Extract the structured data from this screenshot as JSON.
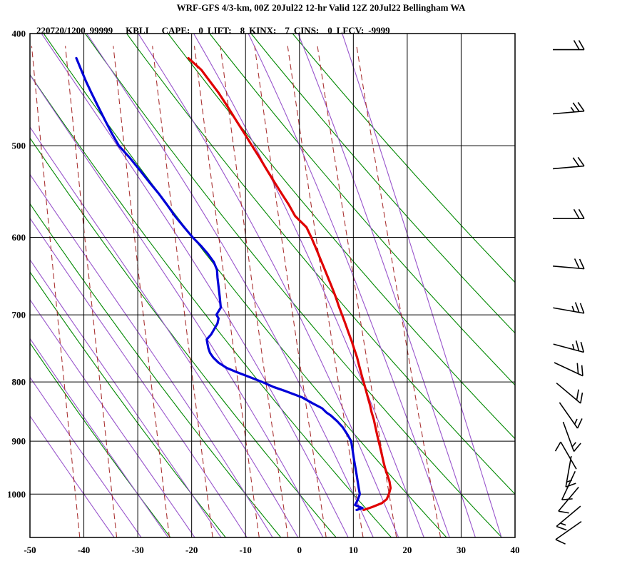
{
  "header": {
    "line1": "WRF-GFS 4/3-km, 00Z 20Jul22 12-hr Valid 12Z 20Jul22 Bellingham WA",
    "line2": {
      "timestamp": "220720/1200",
      "wmo_id": "99999",
      "station_id": "KBLI",
      "cape_label": "CAPE:",
      "cape_value": "0",
      "lift_label": "LIFT:",
      "lift_value": "8",
      "kinx_label": "KINX:",
      "kinx_value": "7",
      "cins_label": "CINS:",
      "cins_value": "0",
      "lfcv_label": "LFCV:",
      "lfcv_value": "-9999"
    }
  },
  "chart_data": {
    "type": "line",
    "subtype": "stuve-sounding",
    "title": "WRF-GFS 4/3-km, 00Z 20Jul22 12-hr Valid 12Z 20Jul22 Bellingham WA",
    "station": "KBLI Bellingham WA",
    "x_axis": {
      "unit": "degC",
      "range": [
        -50,
        40
      ],
      "ticks": [
        -50,
        -40,
        -30,
        -20,
        -10,
        0,
        10,
        20,
        30,
        40
      ]
    },
    "y_axis": {
      "unit": "hPa",
      "scale": "log",
      "top": 400,
      "bottom": 1090,
      "ticks": [
        400,
        500,
        600,
        700,
        800,
        900,
        1000
      ]
    },
    "series": [
      {
        "name": "temperature",
        "color": "#e00000",
        "points": [
          [
            1032,
            11.9
          ],
          [
            1026,
            13.5
          ],
          [
            1018,
            15.3
          ],
          [
            1010,
            16.2
          ],
          [
            1000,
            16.6
          ],
          [
            988,
            16.9
          ],
          [
            975,
            16.7
          ],
          [
            962,
            16.3
          ],
          [
            950,
            15.9
          ],
          [
            938,
            15.6
          ],
          [
            925,
            15.3
          ],
          [
            912,
            15.0
          ],
          [
            900,
            14.7
          ],
          [
            888,
            14.4
          ],
          [
            875,
            14.1
          ],
          [
            862,
            13.8
          ],
          [
            850,
            13.4
          ],
          [
            838,
            13.1
          ],
          [
            825,
            12.7
          ],
          [
            812,
            12.3
          ],
          [
            800,
            11.9
          ],
          [
            788,
            11.5
          ],
          [
            775,
            11.1
          ],
          [
            762,
            10.7
          ],
          [
            750,
            10.2
          ],
          [
            738,
            9.7
          ],
          [
            725,
            9.1
          ],
          [
            712,
            8.5
          ],
          [
            700,
            7.9
          ],
          [
            688,
            7.3
          ],
          [
            675,
            6.7
          ],
          [
            662,
            6.0
          ],
          [
            650,
            5.3
          ],
          [
            638,
            4.6
          ],
          [
            625,
            3.8
          ],
          [
            612,
            3.0
          ],
          [
            600,
            2.2
          ],
          [
            588,
            1.3
          ],
          [
            575,
            -0.8
          ],
          [
            562,
            -2.0
          ],
          [
            550,
            -3.3
          ],
          [
            538,
            -4.6
          ],
          [
            525,
            -6.0
          ],
          [
            512,
            -7.4
          ],
          [
            500,
            -8.8
          ],
          [
            488,
            -10.2
          ],
          [
            475,
            -11.8
          ],
          [
            462,
            -13.4
          ],
          [
            450,
            -15.0
          ],
          [
            440,
            -16.6
          ],
          [
            430,
            -18.2
          ],
          [
            420,
            -20.6
          ]
        ]
      },
      {
        "name": "dewpoint",
        "color": "#0000d8",
        "points": [
          [
            1032,
            10.6
          ],
          [
            1028,
            11.7
          ],
          [
            1022,
            10.3
          ],
          [
            1012,
            10.8
          ],
          [
            1000,
            11.2
          ],
          [
            988,
            11.0
          ],
          [
            975,
            10.8
          ],
          [
            962,
            10.6
          ],
          [
            950,
            10.4
          ],
          [
            938,
            10.2
          ],
          [
            925,
            10.0
          ],
          [
            912,
            9.8
          ],
          [
            900,
            9.6
          ],
          [
            888,
            8.9
          ],
          [
            875,
            8.0
          ],
          [
            865,
            7.0
          ],
          [
            855,
            5.8
          ],
          [
            850,
            5.0
          ],
          [
            843,
            4.2
          ],
          [
            835,
            2.5
          ],
          [
            825,
            0.5
          ],
          [
            815,
            -2.5
          ],
          [
            808,
            -4.8
          ],
          [
            800,
            -6.9
          ],
          [
            793,
            -9.0
          ],
          [
            785,
            -11.5
          ],
          [
            778,
            -13.5
          ],
          [
            770,
            -15.0
          ],
          [
            762,
            -16.0
          ],
          [
            755,
            -16.6
          ],
          [
            748,
            -16.9
          ],
          [
            740,
            -17.1
          ],
          [
            735,
            -17.2
          ],
          [
            728,
            -16.4
          ],
          [
            720,
            -15.8
          ],
          [
            712,
            -15.2
          ],
          [
            705,
            -15.0
          ],
          [
            700,
            -15.4
          ],
          [
            695,
            -15.0
          ],
          [
            690,
            -14.6
          ],
          [
            682,
            -14.7
          ],
          [
            675,
            -14.8
          ],
          [
            662,
            -15.0
          ],
          [
            650,
            -15.2
          ],
          [
            640,
            -15.3
          ],
          [
            630,
            -15.9
          ],
          [
            620,
            -17.0
          ],
          [
            610,
            -18.3
          ],
          [
            600,
            -19.8
          ],
          [
            588,
            -21.4
          ],
          [
            575,
            -23.1
          ],
          [
            562,
            -24.6
          ],
          [
            550,
            -26.1
          ],
          [
            538,
            -27.8
          ],
          [
            525,
            -29.6
          ],
          [
            512,
            -31.5
          ],
          [
            500,
            -33.5
          ],
          [
            488,
            -34.8
          ],
          [
            475,
            -36.1
          ],
          [
            462,
            -37.4
          ],
          [
            450,
            -38.6
          ],
          [
            440,
            -39.6
          ],
          [
            430,
            -40.5
          ],
          [
            420,
            -41.4
          ]
        ]
      }
    ],
    "background": {
      "grid_color": "#000000",
      "dry_adiabats": {
        "color": "#008800",
        "theta_c": [
          -30,
          -20,
          -10,
          0,
          10,
          20,
          30,
          40,
          50,
          60,
          70,
          80
        ]
      },
      "moist_adiabats": {
        "color": "#9955cc",
        "theta_w_c": [
          -40,
          -35,
          -30,
          -25,
          -20,
          -15,
          -10,
          -5,
          0,
          5,
          10,
          15,
          20,
          25,
          30,
          35
        ]
      },
      "mixing_ratio_lines": {
        "color": "#aa3333",
        "style": "dashed",
        "g_per_kg": [
          0.1,
          0.2,
          0.5,
          1,
          2,
          3,
          5,
          8,
          12,
          20
        ]
      }
    },
    "wind_barbs": {
      "color": "#000000",
      "units": "kt",
      "levels": [
        {
          "p": 413,
          "dir": 90,
          "spd": 20
        },
        {
          "p": 468,
          "dir": 85,
          "spd": 25
        },
        {
          "p": 522,
          "dir": 85,
          "spd": 20
        },
        {
          "p": 578,
          "dir": 90,
          "spd": 20
        },
        {
          "p": 637,
          "dir": 95,
          "spd": 20
        },
        {
          "p": 694,
          "dir": 100,
          "spd": 25
        },
        {
          "p": 748,
          "dir": 105,
          "spd": 25
        },
        {
          "p": 780,
          "dir": 115,
          "spd": 20
        },
        {
          "p": 818,
          "dir": 130,
          "spd": 20
        },
        {
          "p": 855,
          "dir": 145,
          "spd": 15
        },
        {
          "p": 892,
          "dir": 160,
          "spd": 15
        },
        {
          "p": 926,
          "dir": 330,
          "spd": 10
        },
        {
          "p": 956,
          "dir": 190,
          "spd": 15
        },
        {
          "p": 983,
          "dir": 205,
          "spd": 10
        },
        {
          "p": 1010,
          "dir": 220,
          "spd": 10
        },
        {
          "p": 1045,
          "dir": 230,
          "spd": 15
        },
        {
          "p": 1075,
          "dir": 235,
          "spd": 10
        }
      ]
    }
  }
}
